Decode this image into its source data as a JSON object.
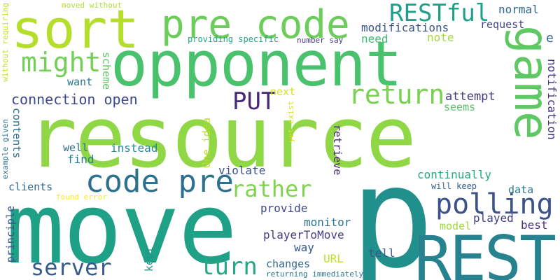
{
  "words": [
    {
      "text": "resource",
      "color": "#8fd744"
    },
    {
      "text": "p",
      "color": "#21908d"
    },
    {
      "text": "move",
      "color": "#1fa187"
    },
    {
      "text": "opponent",
      "color": "#4ac16d"
    },
    {
      "text": "sort",
      "color": "#b5de2b"
    },
    {
      "text": "pre code",
      "color": "#6ccd5a"
    },
    {
      "text": "REST",
      "color": "#26828e"
    },
    {
      "text": "game",
      "color": "#5ec962"
    },
    {
      "text": "code pre",
      "color": "#2c728e"
    },
    {
      "text": "RESTful",
      "color": "#1f9e89"
    },
    {
      "text": "return",
      "color": "#7ad151"
    },
    {
      "text": "might",
      "color": "#73d056"
    },
    {
      "text": "polling",
      "color": "#3b528b"
    },
    {
      "text": "rather",
      "color": "#7fd34e"
    },
    {
      "text": "server",
      "color": "#365c8d"
    },
    {
      "text": "turn",
      "color": "#22a884"
    },
    {
      "text": "PUT",
      "color": "#482878"
    },
    {
      "text": "connection open",
      "color": "#3e4989"
    },
    {
      "text": "modifications",
      "color": "#39568c"
    },
    {
      "text": "normal",
      "color": "#31688e"
    },
    {
      "text": "request",
      "color": "#404688"
    },
    {
      "text": "need",
      "color": "#3fbc73"
    },
    {
      "text": "note",
      "color": "#a2da37"
    },
    {
      "text": "e",
      "color": "#33638d"
    },
    {
      "text": "notification",
      "color": "#46327e"
    },
    {
      "text": "scheme",
      "color": "#5ec962"
    },
    {
      "text": "want",
      "color": "#2a788e"
    },
    {
      "text": "next",
      "color": "#d8e219"
    },
    {
      "text": "attempt",
      "color": "#453781"
    },
    {
      "text": "seems",
      "color": "#56c667"
    },
    {
      "text": "contents",
      "color": "#2e6e8e"
    },
    {
      "text": "well",
      "color": "#2f6c8e"
    },
    {
      "text": "instead",
      "color": "#23898e"
    },
    {
      "text": "find",
      "color": "#277f8e"
    },
    {
      "text": "One idea",
      "color": "#b8de29"
    },
    {
      "text": "violate",
      "color": "#3b528b"
    },
    {
      "text": "retrieve",
      "color": "#482475"
    },
    {
      "text": "yet exist",
      "color": "#dde318"
    },
    {
      "text": "continually",
      "color": "#25ab82"
    },
    {
      "text": "will keep",
      "color": "#34618d"
    },
    {
      "text": "data",
      "color": "#2a788e"
    },
    {
      "text": "clients",
      "color": "#31688e"
    },
    {
      "text": "found error",
      "color": "#fde725"
    },
    {
      "text": "provide",
      "color": "#3f4788"
    },
    {
      "text": "monitor",
      "color": "#2d708e"
    },
    {
      "text": "principle",
      "color": "#3b528b"
    },
    {
      "text": "played",
      "color": "#424086"
    },
    {
      "text": "model",
      "color": "#a0da39"
    },
    {
      "text": "best",
      "color": "#472d7b"
    },
    {
      "text": "playerToMove",
      "color": "#433e85"
    },
    {
      "text": "way",
      "color": "#38588c"
    },
    {
      "text": "kept",
      "color": "#1f958b"
    },
    {
      "text": "URL",
      "color": "#c2df23"
    },
    {
      "text": "tell",
      "color": "#3a548c"
    },
    {
      "text": "changes",
      "color": "#2f6b8e"
    },
    {
      "text": "returning immediately",
      "color": "#2a768e"
    },
    {
      "text": "moved without",
      "color": "#b0dd2f"
    },
    {
      "text": "providing specific",
      "color": "#21a685"
    },
    {
      "text": "number say",
      "color": "#443983"
    },
    {
      "text": "without requiring",
      "color": "#c5e021"
    },
    {
      "text": "example given",
      "color": "#2c738e"
    }
  ]
}
